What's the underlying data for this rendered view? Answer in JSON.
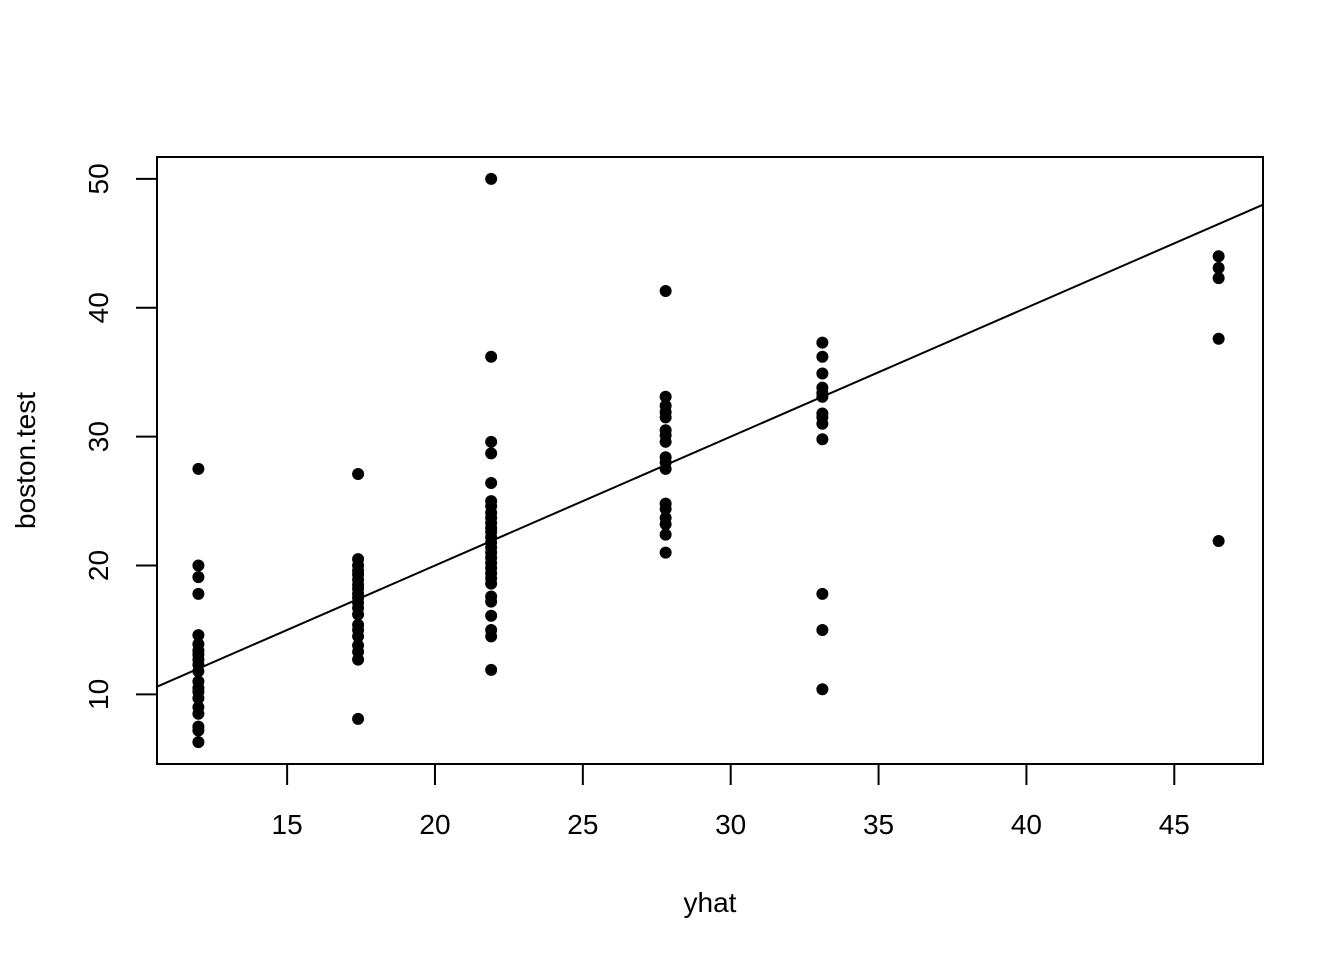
{
  "chart_data": {
    "type": "scatter",
    "title": "",
    "xlabel": "yhat",
    "ylabel": "boston.test",
    "xlim": [
      10.6,
      48.0
    ],
    "ylim": [
      4.6,
      51.7
    ],
    "xticks": [
      15,
      20,
      25,
      30,
      35,
      40,
      45
    ],
    "yticks": [
      10,
      20,
      30,
      40,
      50
    ],
    "grid": false,
    "point_color": "#000000",
    "line_color": "#000000",
    "reference_line": {
      "intercept": 0,
      "slope": 1
    },
    "points": [
      {
        "x": 12.0,
        "y": 27.5
      },
      {
        "x": 12.0,
        "y": 20.0
      },
      {
        "x": 12.0,
        "y": 19.1
      },
      {
        "x": 12.0,
        "y": 17.8
      },
      {
        "x": 12.0,
        "y": 14.6
      },
      {
        "x": 12.0,
        "y": 13.9
      },
      {
        "x": 12.0,
        "y": 13.4
      },
      {
        "x": 12.0,
        "y": 13.1
      },
      {
        "x": 12.0,
        "y": 12.7
      },
      {
        "x": 12.0,
        "y": 12.3
      },
      {
        "x": 12.0,
        "y": 11.8
      },
      {
        "x": 12.0,
        "y": 11.0
      },
      {
        "x": 12.0,
        "y": 10.5
      },
      {
        "x": 12.0,
        "y": 10.2
      },
      {
        "x": 12.0,
        "y": 9.7
      },
      {
        "x": 12.0,
        "y": 9.0
      },
      {
        "x": 12.0,
        "y": 8.5
      },
      {
        "x": 12.0,
        "y": 7.5
      },
      {
        "x": 12.0,
        "y": 7.2
      },
      {
        "x": 12.0,
        "y": 6.3
      },
      {
        "x": 17.4,
        "y": 27.1
      },
      {
        "x": 17.4,
        "y": 20.5
      },
      {
        "x": 17.4,
        "y": 20.0
      },
      {
        "x": 17.4,
        "y": 19.6
      },
      {
        "x": 17.4,
        "y": 19.3
      },
      {
        "x": 17.4,
        "y": 18.9
      },
      {
        "x": 17.4,
        "y": 18.5
      },
      {
        "x": 17.4,
        "y": 18.2
      },
      {
        "x": 17.4,
        "y": 17.8
      },
      {
        "x": 17.4,
        "y": 17.5
      },
      {
        "x": 17.4,
        "y": 17.1
      },
      {
        "x": 17.4,
        "y": 16.7
      },
      {
        "x": 17.4,
        "y": 16.2
      },
      {
        "x": 17.4,
        "y": 15.4
      },
      {
        "x": 17.4,
        "y": 15.0
      },
      {
        "x": 17.4,
        "y": 14.5
      },
      {
        "x": 17.4,
        "y": 13.8
      },
      {
        "x": 17.4,
        "y": 13.3
      },
      {
        "x": 17.4,
        "y": 12.7
      },
      {
        "x": 17.4,
        "y": 8.1
      },
      {
        "x": 21.9,
        "y": 50.0
      },
      {
        "x": 21.9,
        "y": 36.2
      },
      {
        "x": 21.9,
        "y": 29.6
      },
      {
        "x": 21.9,
        "y": 28.7
      },
      {
        "x": 21.9,
        "y": 26.4
      },
      {
        "x": 21.9,
        "y": 25.0
      },
      {
        "x": 21.9,
        "y": 24.6
      },
      {
        "x": 21.9,
        "y": 24.1
      },
      {
        "x": 21.9,
        "y": 23.7
      },
      {
        "x": 21.9,
        "y": 23.3
      },
      {
        "x": 21.9,
        "y": 22.9
      },
      {
        "x": 21.9,
        "y": 22.6
      },
      {
        "x": 21.9,
        "y": 22.2
      },
      {
        "x": 21.9,
        "y": 21.8
      },
      {
        "x": 21.9,
        "y": 21.4
      },
      {
        "x": 21.9,
        "y": 21.0
      },
      {
        "x": 21.9,
        "y": 20.6
      },
      {
        "x": 21.9,
        "y": 20.2
      },
      {
        "x": 21.9,
        "y": 19.8
      },
      {
        "x": 21.9,
        "y": 19.4
      },
      {
        "x": 21.9,
        "y": 19.0
      },
      {
        "x": 21.9,
        "y": 18.6
      },
      {
        "x": 21.9,
        "y": 17.6
      },
      {
        "x": 21.9,
        "y": 17.2
      },
      {
        "x": 21.9,
        "y": 16.1
      },
      {
        "x": 21.9,
        "y": 15.0
      },
      {
        "x": 21.9,
        "y": 14.5
      },
      {
        "x": 21.9,
        "y": 11.9
      },
      {
        "x": 27.8,
        "y": 41.3
      },
      {
        "x": 27.8,
        "y": 33.1
      },
      {
        "x": 27.8,
        "y": 32.4
      },
      {
        "x": 27.8,
        "y": 31.9
      },
      {
        "x": 27.8,
        "y": 31.5
      },
      {
        "x": 27.8,
        "y": 30.5
      },
      {
        "x": 27.8,
        "y": 30.1
      },
      {
        "x": 27.8,
        "y": 29.6
      },
      {
        "x": 27.8,
        "y": 28.4
      },
      {
        "x": 27.8,
        "y": 28.0
      },
      {
        "x": 27.8,
        "y": 27.5
      },
      {
        "x": 27.8,
        "y": 24.8
      },
      {
        "x": 27.8,
        "y": 24.4
      },
      {
        "x": 27.8,
        "y": 23.7
      },
      {
        "x": 27.8,
        "y": 23.2
      },
      {
        "x": 27.8,
        "y": 22.4
      },
      {
        "x": 27.8,
        "y": 21.0
      },
      {
        "x": 33.1,
        "y": 37.3
      },
      {
        "x": 33.1,
        "y": 36.2
      },
      {
        "x": 33.1,
        "y": 34.9
      },
      {
        "x": 33.1,
        "y": 33.8
      },
      {
        "x": 33.1,
        "y": 33.4
      },
      {
        "x": 33.1,
        "y": 33.1
      },
      {
        "x": 33.1,
        "y": 31.8
      },
      {
        "x": 33.1,
        "y": 31.5
      },
      {
        "x": 33.1,
        "y": 31.0
      },
      {
        "x": 33.1,
        "y": 29.8
      },
      {
        "x": 33.1,
        "y": 17.8
      },
      {
        "x": 33.1,
        "y": 15.0
      },
      {
        "x": 33.1,
        "y": 10.4
      },
      {
        "x": 46.5,
        "y": 44.0
      },
      {
        "x": 46.5,
        "y": 43.1
      },
      {
        "x": 46.5,
        "y": 42.3
      },
      {
        "x": 46.5,
        "y": 37.6
      },
      {
        "x": 46.5,
        "y": 21.9
      }
    ]
  }
}
